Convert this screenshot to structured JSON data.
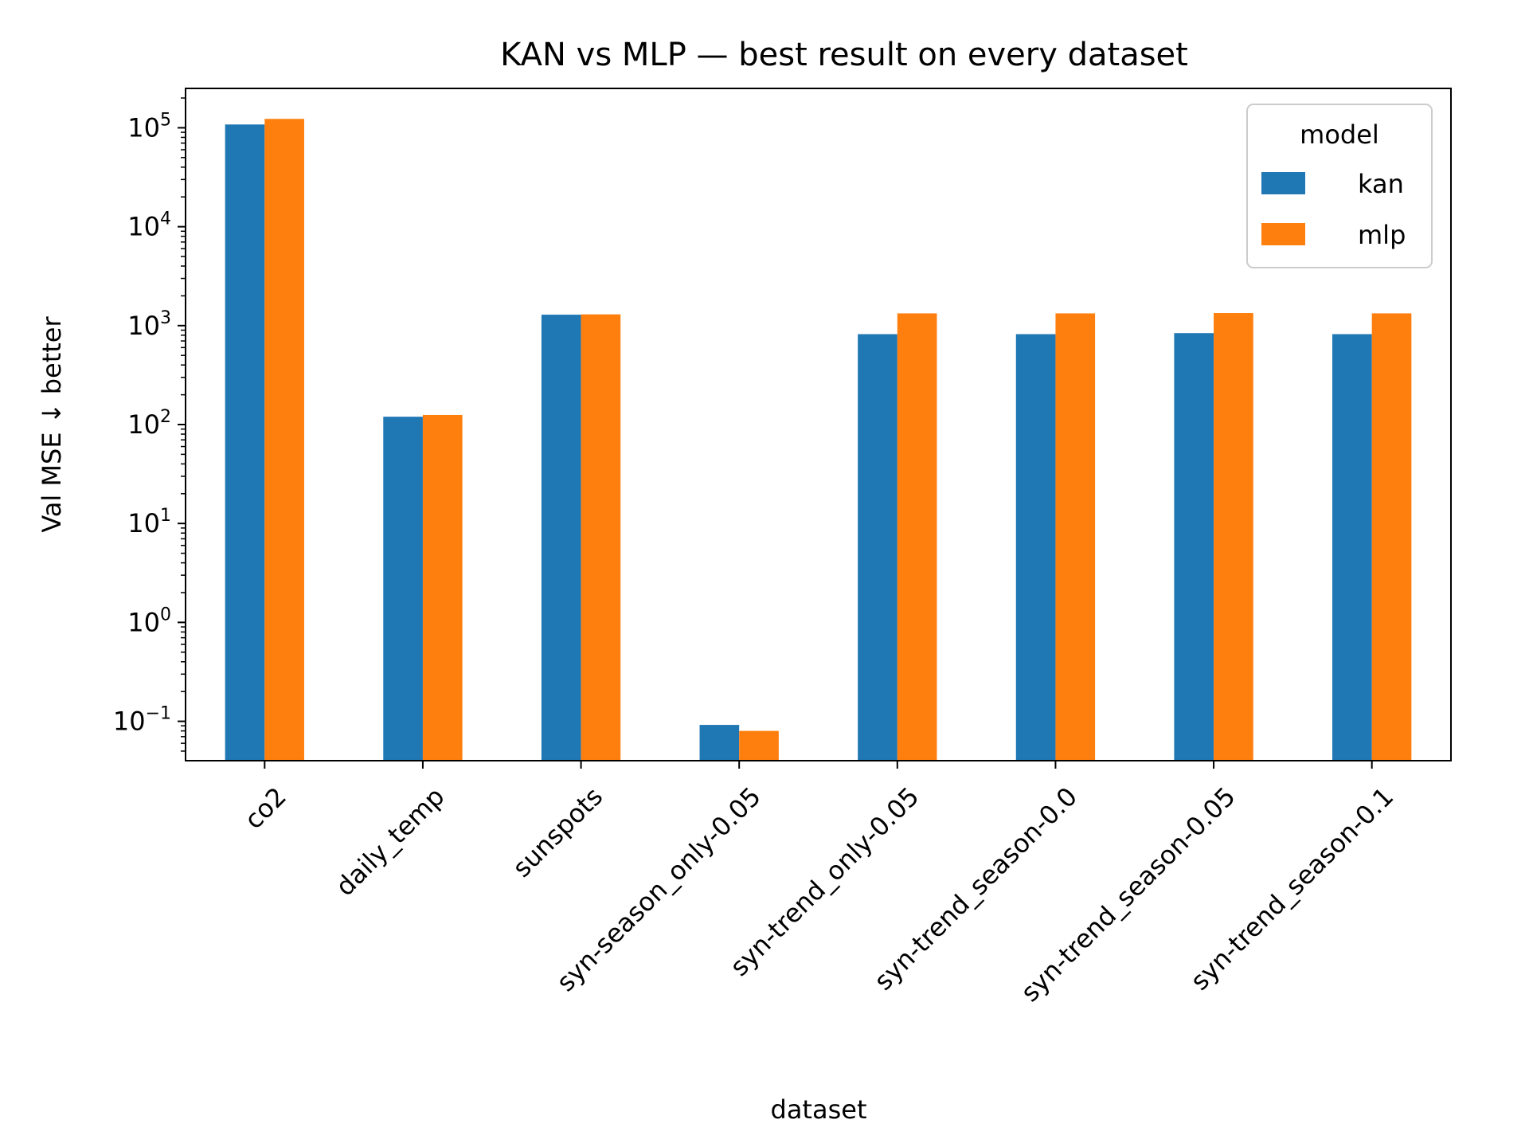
{
  "chart_data": {
    "type": "bar",
    "title": "KAN vs MLP — best result on every dataset",
    "xlabel": "dataset",
    "ylabel": "Val MSE  ↓ better",
    "yscale": "log",
    "ylim": [
      0.04,
      250000
    ],
    "categories": [
      "co2",
      "daily_temp",
      "sunspots",
      "syn-season_only-0.05",
      "syn-trend_only-0.05",
      "syn-trend_season-0.0",
      "syn-trend_season-0.05",
      "syn-trend_season-0.1"
    ],
    "series": [
      {
        "name": "kan",
        "color": "#1f77b4",
        "values": [
          108000,
          120,
          1290,
          0.092,
          820,
          820,
          840,
          820
        ]
      },
      {
        "name": "mlp",
        "color": "#ff7f0e",
        "values": [
          123000,
          125,
          1300,
          0.08,
          1330,
          1330,
          1340,
          1330
        ]
      }
    ],
    "yticks": [
      {
        "value": 0.1,
        "base": "10",
        "exp": "−1"
      },
      {
        "value": 1,
        "base": "10",
        "exp": "0"
      },
      {
        "value": 10,
        "base": "10",
        "exp": "1"
      },
      {
        "value": 100,
        "base": "10",
        "exp": "2"
      },
      {
        "value": 1000,
        "base": "10",
        "exp": "3"
      },
      {
        "value": 10000,
        "base": "10",
        "exp": "4"
      },
      {
        "value": 100000,
        "base": "10",
        "exp": "5"
      }
    ],
    "legend": {
      "title": "model",
      "position": "top-right"
    },
    "grid": false
  }
}
